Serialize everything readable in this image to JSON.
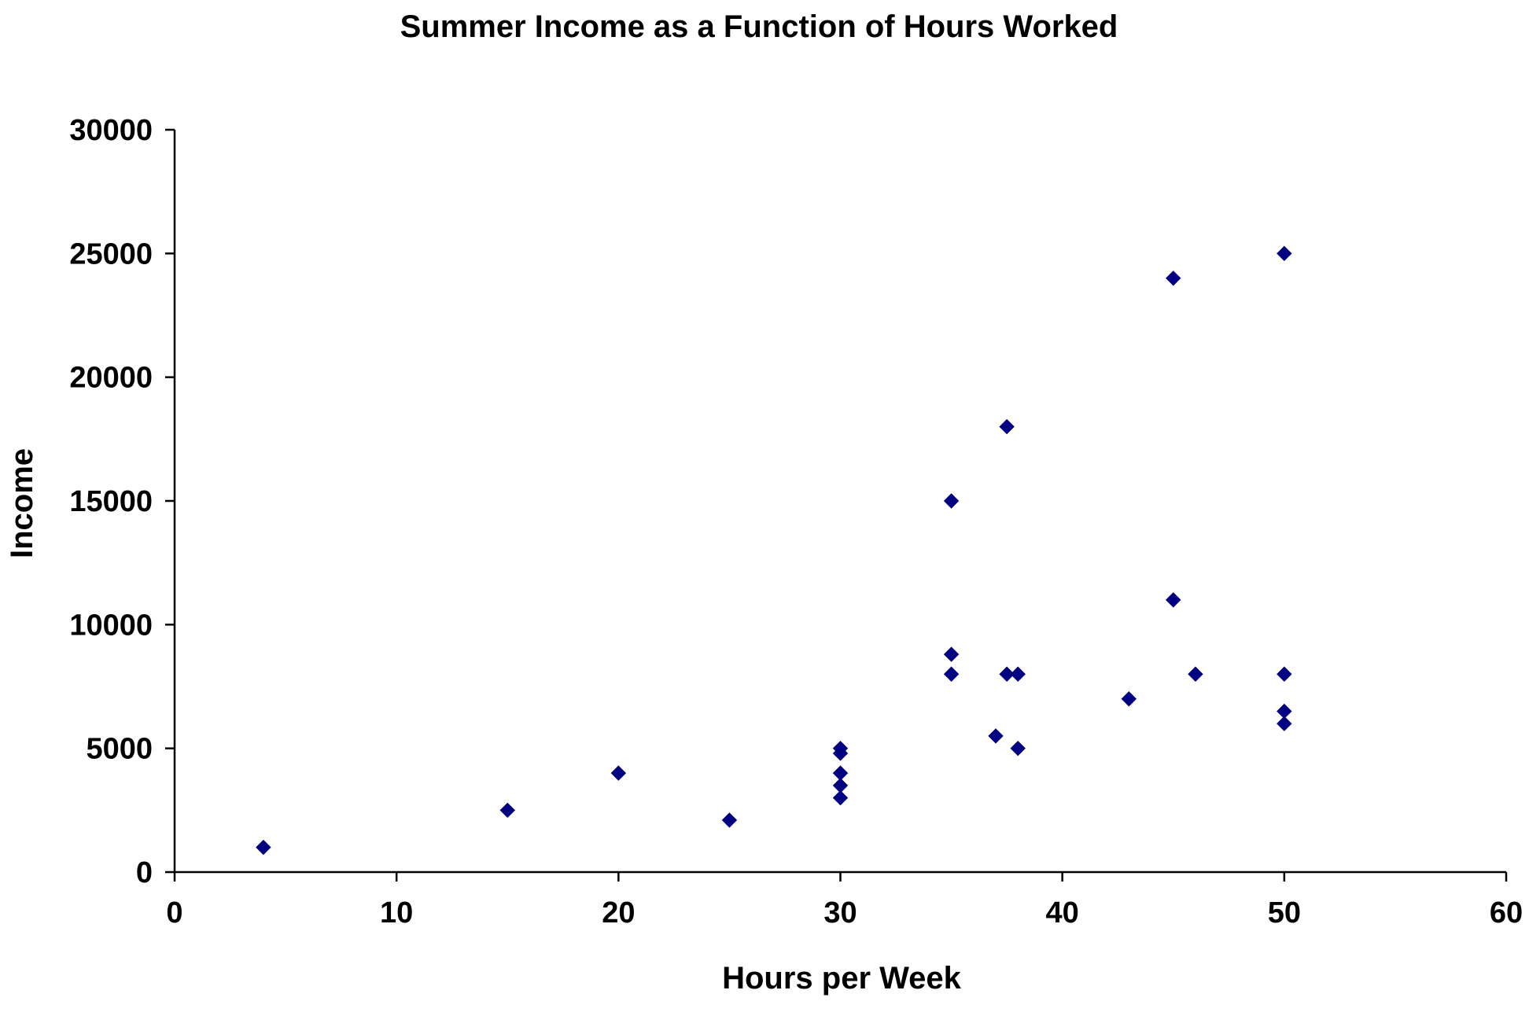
{
  "chart_data": {
    "type": "scatter",
    "title": "Summer Income as a Function of Hours Worked",
    "xlabel": "Hours per Week",
    "ylabel": "Income",
    "xlim": [
      0,
      60
    ],
    "ylim": [
      0,
      30000
    ],
    "xticks": [
      0,
      10,
      20,
      30,
      40,
      50,
      60
    ],
    "yticks": [
      0,
      5000,
      10000,
      15000,
      20000,
      25000,
      30000
    ],
    "grid": false,
    "legend": "none",
    "marker": "diamond",
    "marker_color": "#000080",
    "series": [
      {
        "points": [
          {
            "x": 4,
            "y": 1000
          },
          {
            "x": 15,
            "y": 2500
          },
          {
            "x": 20,
            "y": 4000
          },
          {
            "x": 25,
            "y": 2100
          },
          {
            "x": 30,
            "y": 5000
          },
          {
            "x": 30,
            "y": 4800
          },
          {
            "x": 30,
            "y": 4000
          },
          {
            "x": 30,
            "y": 3500
          },
          {
            "x": 30,
            "y": 3000
          },
          {
            "x": 35,
            "y": 15000
          },
          {
            "x": 35,
            "y": 8800
          },
          {
            "x": 35,
            "y": 8000
          },
          {
            "x": 37,
            "y": 5500
          },
          {
            "x": 37.5,
            "y": 18000
          },
          {
            "x": 37.5,
            "y": 8000
          },
          {
            "x": 38,
            "y": 8000
          },
          {
            "x": 38,
            "y": 5000
          },
          {
            "x": 43,
            "y": 7000
          },
          {
            "x": 45,
            "y": 24000
          },
          {
            "x": 45,
            "y": 11000
          },
          {
            "x": 46,
            "y": 8000
          },
          {
            "x": 50,
            "y": 25000
          },
          {
            "x": 50,
            "y": 8000
          },
          {
            "x": 50,
            "y": 6500
          },
          {
            "x": 50,
            "y": 6000
          }
        ]
      }
    ]
  }
}
